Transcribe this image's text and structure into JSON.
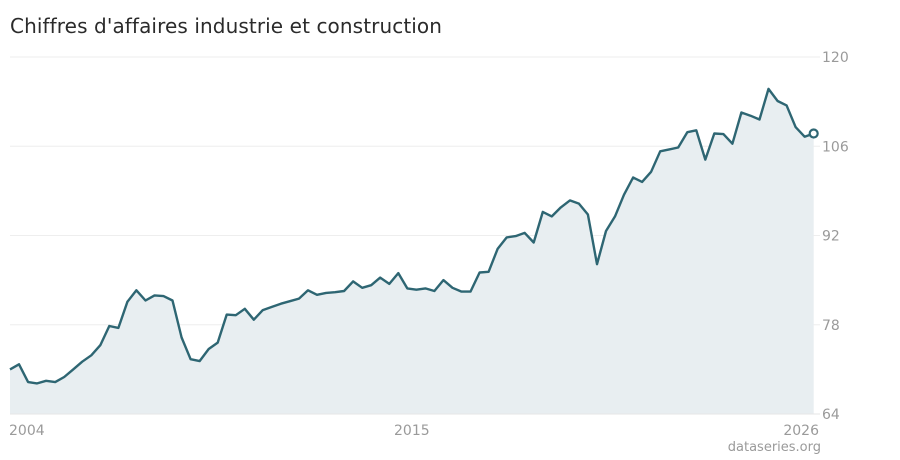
{
  "chart_data": {
    "type": "area",
    "title": "Chiffres d'affaires industrie et construction",
    "source": "dataseries.org",
    "xlabel": "",
    "ylabel": "",
    "xlim": [
      2003.875,
      2026.3
    ],
    "ylim": [
      64,
      120
    ],
    "yticks": [
      "120",
      "106",
      "92",
      "78",
      "64"
    ],
    "xticks": [
      {
        "label": "2004",
        "value": 2004
      },
      {
        "label": "2015",
        "value": 2015
      },
      {
        "label": "2026",
        "value": 2026
      }
    ],
    "grid": true,
    "line_color": "#2e6673",
    "fill_color": "#e8eef1",
    "series": [
      {
        "x": [
          2003.875,
          2004.125,
          2004.375,
          2004.625,
          2004.875,
          2005.125,
          2005.375,
          2005.625,
          2005.875,
          2006.125,
          2006.375,
          2006.625,
          2006.875,
          2007.125,
          2007.375,
          2007.625,
          2007.875,
          2008.125,
          2008.375,
          2008.625,
          2008.875,
          2009.125,
          2009.375,
          2009.625,
          2009.875,
          2010.125,
          2010.375,
          2010.625,
          2010.875,
          2011.125,
          2011.375,
          2011.625,
          2011.875,
          2012.125,
          2012.375,
          2012.625,
          2012.875,
          2013.125,
          2013.375,
          2013.625,
          2013.875,
          2014.125,
          2014.375,
          2014.625,
          2014.875,
          2015.125,
          2015.375,
          2015.625,
          2015.875,
          2016.125,
          2016.375,
          2016.625,
          2016.875,
          2017.125,
          2017.375,
          2017.625,
          2017.875,
          2018.125,
          2018.375,
          2018.625,
          2018.875,
          2019.125,
          2019.375,
          2019.625,
          2019.875,
          2020.125,
          2020.375,
          2020.625,
          2020.875,
          2021.125,
          2021.375,
          2021.625,
          2021.875,
          2022.125,
          2022.375,
          2022.625,
          2022.875,
          2023.125,
          2023.375,
          2023.625,
          2023.875,
          2024.125,
          2024.375,
          2024.625,
          2024.875,
          2025.125,
          2025.375,
          2025.625,
          2025.875,
          2026.125
        ],
        "values": [
          71.0,
          71.8,
          69.0,
          68.8,
          69.2,
          69.0,
          69.8,
          71.0,
          72.2,
          73.2,
          74.8,
          77.8,
          77.5,
          81.6,
          83.4,
          81.8,
          82.6,
          82.5,
          81.8,
          76.0,
          72.6,
          72.3,
          74.2,
          75.2,
          79.6,
          79.5,
          80.5,
          78.8,
          80.3,
          80.8,
          81.3,
          81.7,
          82.1,
          83.4,
          82.7,
          83.0,
          83.1,
          83.3,
          84.8,
          83.8,
          84.2,
          85.4,
          84.4,
          86.1,
          83.7,
          83.5,
          83.7,
          83.3,
          85.0,
          83.8,
          83.2,
          83.2,
          86.2,
          86.3,
          89.9,
          91.7,
          91.9,
          92.4,
          90.9,
          95.7,
          95.0,
          96.4,
          97.5,
          97.0,
          95.3,
          87.5,
          92.7,
          95.0,
          98.4,
          101.1,
          100.4,
          102.0,
          105.2,
          105.5,
          105.8,
          108.2,
          108.5,
          103.9,
          108.0,
          107.9,
          106.4,
          111.3,
          110.8,
          110.2,
          115.0,
          113.1,
          112.4,
          109.0,
          107.5,
          108.0
        ]
      }
    ]
  }
}
